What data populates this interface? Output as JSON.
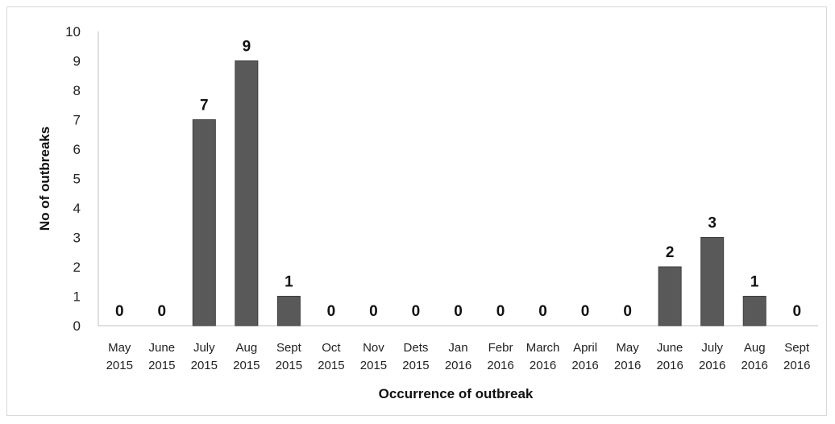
{
  "chart_data": {
    "type": "bar",
    "title": "",
    "xlabel": "Occurrence of outbreak",
    "ylabel": "No of outbreaks",
    "ylim": [
      0,
      10
    ],
    "yticks": [
      "0",
      "1",
      "2",
      "3",
      "4",
      "5",
      "6",
      "7",
      "8",
      "9",
      "10"
    ],
    "categories": [
      [
        "May",
        "2015"
      ],
      [
        "June",
        "2015"
      ],
      [
        "July",
        "2015"
      ],
      [
        "Aug",
        "2015"
      ],
      [
        "Sept",
        "2015"
      ],
      [
        "Oct",
        "2015"
      ],
      [
        "Nov",
        "2015"
      ],
      [
        "Dets",
        "2015"
      ],
      [
        "Jan",
        "2016"
      ],
      [
        "Febr",
        "2016"
      ],
      [
        "March",
        "2016"
      ],
      [
        "April",
        "2016"
      ],
      [
        "May",
        "2016"
      ],
      [
        "June",
        "2016"
      ],
      [
        "July",
        "2016"
      ],
      [
        "Aug",
        "2016"
      ],
      [
        "Sept",
        "2016"
      ]
    ],
    "values": [
      0,
      0,
      7,
      9,
      1,
      0,
      0,
      0,
      0,
      0,
      0,
      0,
      0,
      2,
      3,
      1,
      0
    ],
    "bar_color": "#595959",
    "grid": false,
    "legend": "none"
  }
}
